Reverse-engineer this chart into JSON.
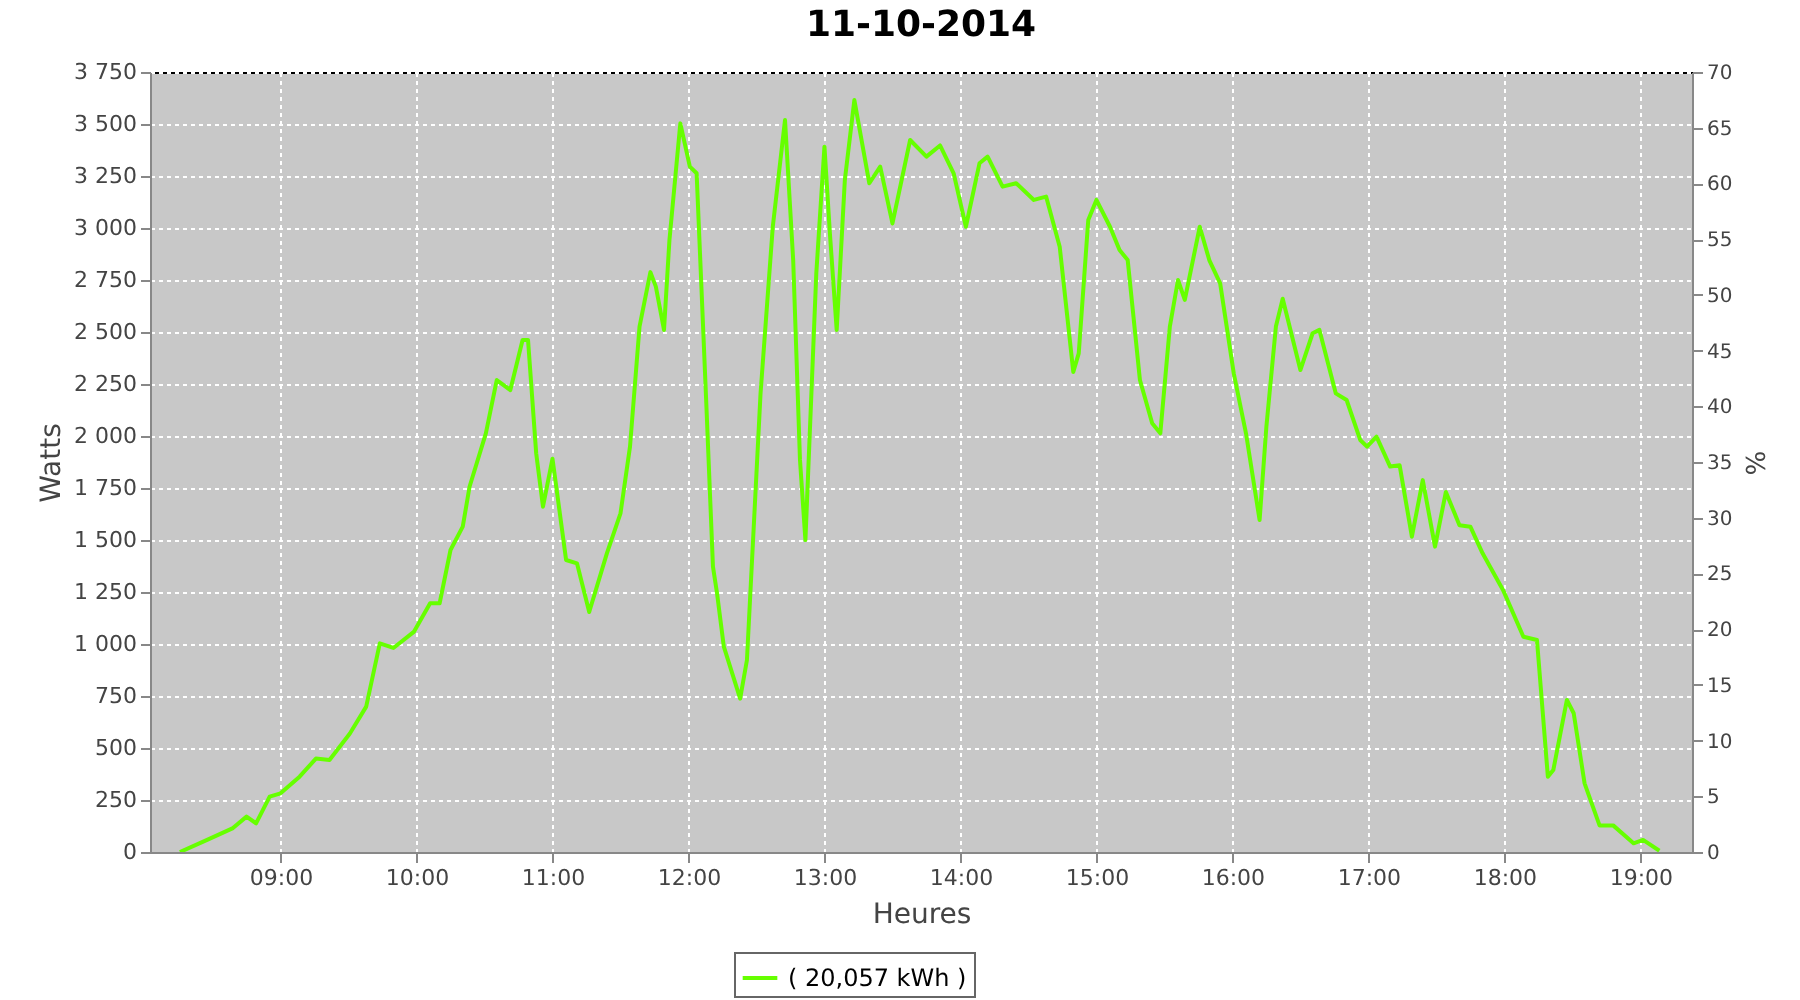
{
  "chart_data": {
    "type": "line",
    "title": "11-10-2014",
    "xlabel": "Heures",
    "ylabel": "Watts",
    "y2label": "%",
    "xlim": [
      8.04,
      19.38
    ],
    "xticks": [
      {
        "value": 9,
        "label": "09:00"
      },
      {
        "value": 10,
        "label": "10:00"
      },
      {
        "value": 11,
        "label": "11:00"
      },
      {
        "value": 12,
        "label": "12:00"
      },
      {
        "value": 13,
        "label": "13:00"
      },
      {
        "value": 14,
        "label": "14:00"
      },
      {
        "value": 15,
        "label": "15:00"
      },
      {
        "value": 16,
        "label": "16:00"
      },
      {
        "value": 17,
        "label": "17:00"
      },
      {
        "value": 18,
        "label": "18:00"
      },
      {
        "value": 19,
        "label": "19:00"
      }
    ],
    "ylim": [
      0,
      3750
    ],
    "yticks": [
      0,
      250,
      500,
      750,
      {
        "value": 1000,
        "label": "1 000"
      },
      {
        "value": 1250,
        "label": "1 250"
      },
      {
        "value": 1500,
        "label": "1 500"
      },
      {
        "value": 1750,
        "label": "1 750"
      },
      {
        "value": 2000,
        "label": "2 000"
      },
      {
        "value": 2250,
        "label": "2 250"
      },
      {
        "value": 2500,
        "label": "2 500"
      },
      {
        "value": 2750,
        "label": "2 750"
      },
      {
        "value": 3000,
        "label": "3 000"
      },
      {
        "value": 3250,
        "label": "3 250"
      },
      {
        "value": 3500,
        "label": "3 500"
      },
      {
        "value": 3750,
        "label": "3 750"
      }
    ],
    "y2lim": [
      0,
      70
    ],
    "y2ticks": [
      0,
      5,
      10,
      15,
      20,
      25,
      30,
      35,
      40,
      45,
      50,
      55,
      60,
      65,
      70
    ],
    "grid": true,
    "legend": "bottom",
    "line_style": "solid",
    "series": [
      {
        "name": "( 20,057 kWh )",
        "color": "#66ff00",
        "x": [
          8.26,
          8.46,
          8.65,
          8.75,
          8.82,
          8.92,
          9.0,
          9.14,
          9.26,
          9.36,
          9.51,
          9.63,
          9.73,
          9.83,
          9.98,
          10.1,
          10.17,
          10.25,
          10.34,
          10.39,
          10.51,
          10.59,
          10.69,
          10.78,
          10.82,
          10.88,
          10.93,
          11.0,
          11.1,
          11.18,
          11.27,
          11.4,
          11.5,
          11.57,
          11.64,
          11.72,
          11.76,
          11.82,
          11.86,
          11.94,
          12.01,
          12.06,
          12.13,
          12.18,
          12.21,
          12.26,
          12.38,
          12.43,
          12.53,
          12.62,
          12.71,
          12.77,
          12.82,
          12.86,
          12.94,
          13.0,
          13.04,
          13.09,
          13.15,
          13.22,
          13.33,
          13.41,
          13.5,
          13.63,
          13.75,
          13.85,
          13.95,
          14.04,
          14.14,
          14.2,
          14.31,
          14.41,
          14.54,
          14.63,
          14.73,
          14.83,
          14.87,
          14.94,
          15.0,
          15.1,
          15.17,
          15.23,
          15.32,
          15.41,
          15.47,
          15.54,
          15.6,
          15.65,
          15.76,
          15.83,
          15.91,
          16.01,
          16.1,
          16.2,
          16.25,
          16.32,
          16.37,
          16.5,
          16.59,
          16.64,
          16.76,
          16.84,
          16.94,
          16.99,
          17.06,
          17.16,
          17.23,
          17.32,
          17.4,
          17.49,
          17.57,
          17.67,
          17.75,
          17.84,
          17.99,
          18.14,
          18.24,
          18.32,
          18.36,
          18.46,
          18.51,
          18.59,
          18.7,
          18.8,
          18.95,
          19.02,
          19.14
        ],
        "values": [
          0,
          58,
          115,
          170,
          138,
          266,
          282,
          362,
          449,
          442,
          570,
          699,
          1003,
          981,
          1058,
          1196,
          1196,
          1452,
          1564,
          1756,
          2013,
          2269,
          2221,
          2462,
          2462,
          1917,
          1660,
          1891,
          1404,
          1388,
          1154,
          1436,
          1628,
          1949,
          2526,
          2788,
          2718,
          2510,
          2942,
          3503,
          3295,
          3263,
          2173,
          1372,
          1244,
          987,
          737,
          923,
          2205,
          3006,
          3519,
          2846,
          1885,
          1500,
          2782,
          3391,
          2974,
          2510,
          3231,
          3615,
          3215,
          3295,
          3022,
          3423,
          3343,
          3397,
          3263,
          3006,
          3311,
          3343,
          3199,
          3215,
          3135,
          3151,
          2910,
          2308,
          2397,
          3038,
          3135,
          3006,
          2894,
          2846,
          2269,
          2061,
          2013,
          2526,
          2750,
          2654,
          3006,
          2846,
          2734,
          2301,
          2013,
          1596,
          2045,
          2526,
          2660,
          2317,
          2494,
          2510,
          2205,
          2173,
          1981,
          1949,
          1997,
          1853,
          1859,
          1516,
          1788,
          1468,
          1731,
          1571,
          1564,
          1436,
          1260,
          1035,
          1019,
          362,
          394,
          731,
          667,
          330,
          128,
          128,
          42,
          58,
          6
        ]
      }
    ]
  }
}
